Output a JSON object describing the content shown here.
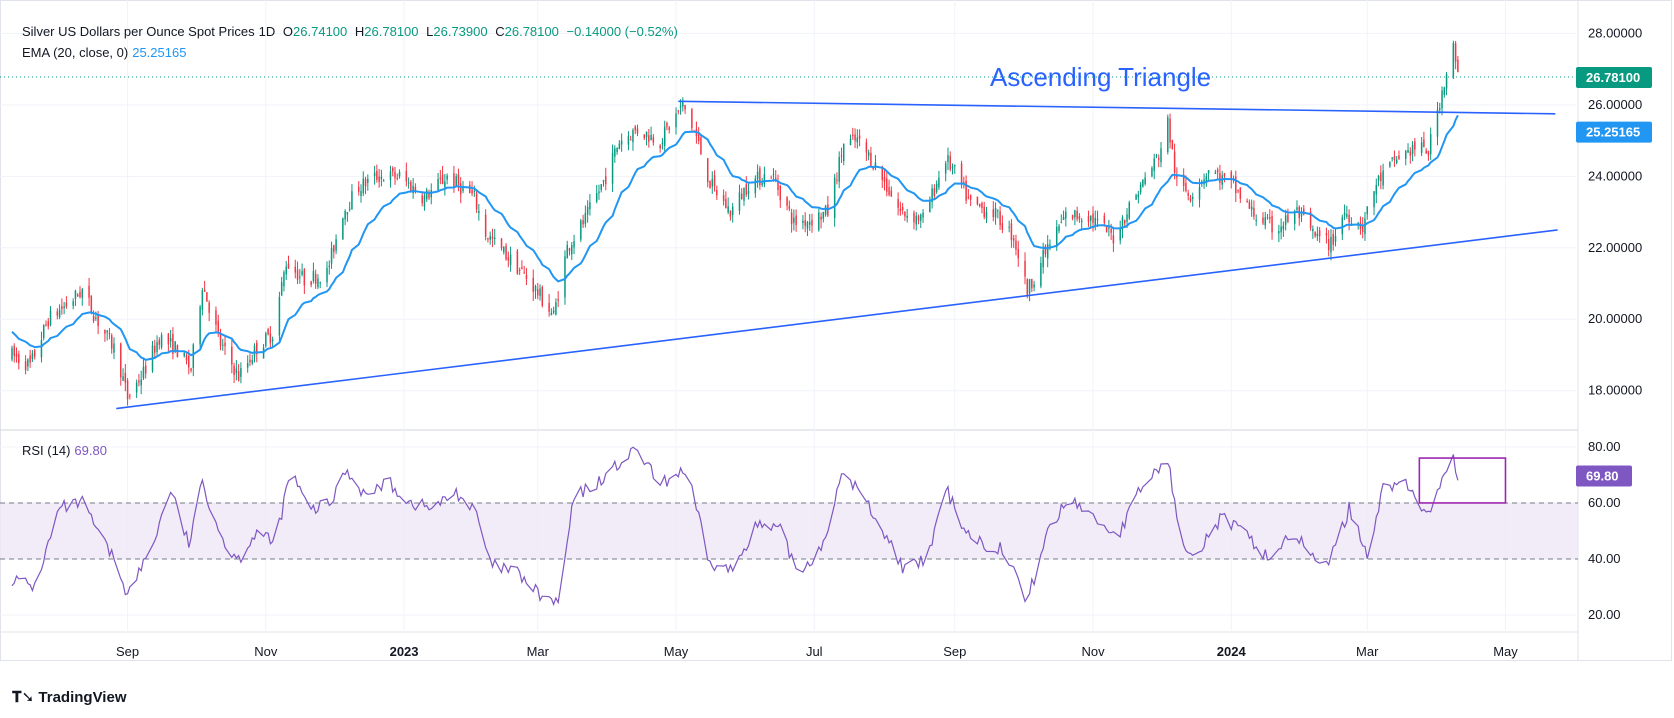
{
  "header": {
    "symbol": "Silver US Dollars per Ounce Spot Prices",
    "interval": "1D",
    "open_label": "O",
    "open": "26.74100",
    "high_label": "H",
    "high": "26.78100",
    "low_label": "L",
    "low": "26.73900",
    "close_label": "C",
    "close": "26.78100",
    "change": "−0.14000 (−0.52%)",
    "ema_label": "EMA (20, close, 0)",
    "ema_value": "25.25165",
    "rsi_label": "RSI (14)",
    "rsi_value": "69.80"
  },
  "annotation": "Ascending Triangle",
  "brand": "TradingView",
  "colors": {
    "up": "#089981",
    "down": "#f23645",
    "ema": "#2196f3",
    "trend": "#2962ff",
    "rsi": "#7e57c2",
    "rsi_band": "#ede7f6"
  },
  "chart_data": {
    "type": "candlestick",
    "x_ticks": [
      "Sep",
      "Nov",
      "2023",
      "Mar",
      "May",
      "Jul",
      "Sep",
      "Nov",
      "2024",
      "Mar",
      "May"
    ],
    "x_tick_dates": [
      "2022-09-01",
      "2022-11-01",
      "2023-01-01",
      "2023-03-01",
      "2023-05-01",
      "2023-07-01",
      "2023-09-01",
      "2023-11-01",
      "2024-01-01",
      "2024-03-01",
      "2024-05-01"
    ],
    "x_range": [
      "2022-07-12",
      "2024-06-02"
    ],
    "price_axis": {
      "ticks": [
        "28.00000",
        "26.00000",
        "24.00000",
        "22.00000",
        "20.00000",
        "18.00000"
      ],
      "range": [
        16.9,
        28.6
      ]
    },
    "last_price_label": "26.78100",
    "ema_label_value": "25.25165",
    "price_path": [
      [
        "2022-07-12",
        19.0
      ],
      [
        "2022-07-20",
        18.7
      ],
      [
        "2022-07-28",
        20.0
      ],
      [
        "2022-08-05",
        20.4
      ],
      [
        "2022-08-12",
        20.8
      ],
      [
        "2022-08-20",
        19.8
      ],
      [
        "2022-08-27",
        19.1
      ],
      [
        "2022-09-01",
        17.8
      ],
      [
        "2022-09-08",
        18.5
      ],
      [
        "2022-09-15",
        19.5
      ],
      [
        "2022-09-22",
        19.2
      ],
      [
        "2022-09-29",
        18.6
      ],
      [
        "2022-10-04",
        21.0
      ],
      [
        "2022-10-12",
        19.3
      ],
      [
        "2022-10-20",
        18.4
      ],
      [
        "2022-10-28",
        19.2
      ],
      [
        "2022-11-04",
        19.6
      ],
      [
        "2022-11-10",
        21.6
      ],
      [
        "2022-11-18",
        21.1
      ],
      [
        "2022-11-28",
        21.3
      ],
      [
        "2022-12-05",
        23.0
      ],
      [
        "2022-12-12",
        23.7
      ],
      [
        "2022-12-20",
        24.0
      ],
      [
        "2022-12-30",
        24.0
      ],
      [
        "2023-01-10",
        23.4
      ],
      [
        "2023-01-20",
        24.0
      ],
      [
        "2023-02-01",
        23.4
      ],
      [
        "2023-02-06",
        22.4
      ],
      [
        "2023-02-15",
        21.8
      ],
      [
        "2023-02-25",
        21.1
      ],
      [
        "2023-03-08",
        20.1
      ],
      [
        "2023-03-14",
        22.0
      ],
      [
        "2023-03-22",
        22.8
      ],
      [
        "2023-03-31",
        24.0
      ],
      [
        "2023-04-06",
        25.0
      ],
      [
        "2023-04-14",
        25.3
      ],
      [
        "2023-04-24",
        25.0
      ],
      [
        "2023-05-04",
        26.0
      ],
      [
        "2023-05-10",
        25.1
      ],
      [
        "2023-05-16",
        23.8
      ],
      [
        "2023-05-25",
        23.0
      ],
      [
        "2023-06-02",
        23.8
      ],
      [
        "2023-06-12",
        24.1
      ],
      [
        "2023-06-22",
        22.7
      ],
      [
        "2023-06-30",
        22.8
      ],
      [
        "2023-07-07",
        23.0
      ],
      [
        "2023-07-14",
        24.9
      ],
      [
        "2023-07-20",
        25.0
      ],
      [
        "2023-07-28",
        24.3
      ],
      [
        "2023-08-08",
        23.0
      ],
      [
        "2023-08-18",
        22.8
      ],
      [
        "2023-08-28",
        24.5
      ],
      [
        "2023-09-01",
        24.1
      ],
      [
        "2023-09-08",
        23.2
      ],
      [
        "2023-09-18",
        23.0
      ],
      [
        "2023-09-27",
        22.3
      ],
      [
        "2023-10-03",
        20.8
      ],
      [
        "2023-10-12",
        22.0
      ],
      [
        "2023-10-20",
        22.9
      ],
      [
        "2023-10-30",
        22.9
      ],
      [
        "2023-11-10",
        22.3
      ],
      [
        "2023-11-20",
        23.5
      ],
      [
        "2023-11-30",
        24.6
      ],
      [
        "2023-12-04",
        25.5
      ],
      [
        "2023-12-08",
        23.8
      ],
      [
        "2023-12-14",
        23.5
      ],
      [
        "2023-12-22",
        24.2
      ],
      [
        "2024-01-02",
        23.7
      ],
      [
        "2024-01-10",
        23.0
      ],
      [
        "2024-01-20",
        22.5
      ],
      [
        "2024-01-30",
        23.0
      ],
      [
        "2024-02-07",
        22.3
      ],
      [
        "2024-02-14",
        22.1
      ],
      [
        "2024-02-20",
        23.0
      ],
      [
        "2024-02-28",
        22.6
      ],
      [
        "2024-03-05",
        23.8
      ],
      [
        "2024-03-14",
        24.5
      ],
      [
        "2024-03-22",
        24.8
      ],
      [
        "2024-03-28",
        24.7
      ],
      [
        "2024-04-03",
        26.4
      ],
      [
        "2024-04-08",
        27.6
      ],
      [
        "2024-04-10",
        26.78
      ]
    ],
    "ema_start": 19.7,
    "trendlines": [
      {
        "points": [
          [
            "2022-08-27",
            17.5
          ],
          [
            "2024-05-24",
            22.5
          ]
        ]
      },
      {
        "points": [
          [
            "2023-05-02",
            26.1
          ],
          [
            "2024-05-23",
            25.75
          ]
        ]
      }
    ],
    "rsi": {
      "ticks": [
        "80.00",
        "60.00",
        "40.00",
        "20.00"
      ],
      "range": [
        14,
        86
      ],
      "band": [
        40,
        60
      ],
      "value_label": "69.80",
      "path": [
        [
          "2022-07-12",
          33
        ],
        [
          "2022-07-22",
          30
        ],
        [
          "2022-08-02",
          58
        ],
        [
          "2022-08-12",
          60
        ],
        [
          "2022-08-20",
          48
        ],
        [
          "2022-08-28",
          37
        ],
        [
          "2022-09-01",
          27
        ],
        [
          "2022-09-12",
          45
        ],
        [
          "2022-09-20",
          65
        ],
        [
          "2022-09-28",
          45
        ],
        [
          "2022-10-04",
          67
        ],
        [
          "2022-10-14",
          45
        ],
        [
          "2022-10-20",
          40
        ],
        [
          "2022-10-28",
          50
        ],
        [
          "2022-11-05",
          45
        ],
        [
          "2022-11-12",
          72
        ],
        [
          "2022-11-20",
          57
        ],
        [
          "2022-11-30",
          60
        ],
        [
          "2022-12-06",
          72
        ],
        [
          "2022-12-16",
          62
        ],
        [
          "2022-12-24",
          68
        ],
        [
          "2023-01-04",
          60
        ],
        [
          "2023-01-14",
          58
        ],
        [
          "2023-01-24",
          64
        ],
        [
          "2023-02-02",
          56
        ],
        [
          "2023-02-08",
          38
        ],
        [
          "2023-02-20",
          35
        ],
        [
          "2023-03-02",
          27
        ],
        [
          "2023-03-10",
          24
        ],
        [
          "2023-03-17",
          62
        ],
        [
          "2023-03-27",
          67
        ],
        [
          "2023-04-06",
          74
        ],
        [
          "2023-04-14",
          79
        ],
        [
          "2023-04-24",
          66
        ],
        [
          "2023-05-04",
          72
        ],
        [
          "2023-05-08",
          64
        ],
        [
          "2023-05-16",
          38
        ],
        [
          "2023-05-26",
          36
        ],
        [
          "2023-06-05",
          52
        ],
        [
          "2023-06-16",
          50
        ],
        [
          "2023-06-24",
          35
        ],
        [
          "2023-07-04",
          44
        ],
        [
          "2023-07-14",
          71
        ],
        [
          "2023-07-22",
          63
        ],
        [
          "2023-07-30",
          52
        ],
        [
          "2023-08-10",
          36
        ],
        [
          "2023-08-20",
          40
        ],
        [
          "2023-08-28",
          65
        ],
        [
          "2023-09-06",
          50
        ],
        [
          "2023-09-14",
          45
        ],
        [
          "2023-09-22",
          44
        ],
        [
          "2023-10-03",
          25
        ],
        [
          "2023-10-12",
          50
        ],
        [
          "2023-10-22",
          62
        ],
        [
          "2023-11-01",
          55
        ],
        [
          "2023-11-12",
          48
        ],
        [
          "2023-11-22",
          65
        ],
        [
          "2023-12-04",
          76
        ],
        [
          "2023-12-09",
          48
        ],
        [
          "2023-12-16",
          42
        ],
        [
          "2023-12-28",
          55
        ],
        [
          "2024-01-08",
          48
        ],
        [
          "2024-01-18",
          40
        ],
        [
          "2024-01-28",
          50
        ],
        [
          "2024-02-06",
          40
        ],
        [
          "2024-02-14",
          40
        ],
        [
          "2024-02-22",
          58
        ],
        [
          "2024-03-01",
          42
        ],
        [
          "2024-03-08",
          65
        ],
        [
          "2024-03-16",
          68
        ],
        [
          "2024-03-24",
          60
        ],
        [
          "2024-03-28",
          55
        ],
        [
          "2024-04-03",
          70
        ],
        [
          "2024-04-08",
          76
        ],
        [
          "2024-04-10",
          70
        ]
      ]
    },
    "highlight_box": {
      "from": "2024-03-24",
      "to": "2024-05-01",
      "rsi_top": 76,
      "rsi_bottom": 60
    }
  }
}
